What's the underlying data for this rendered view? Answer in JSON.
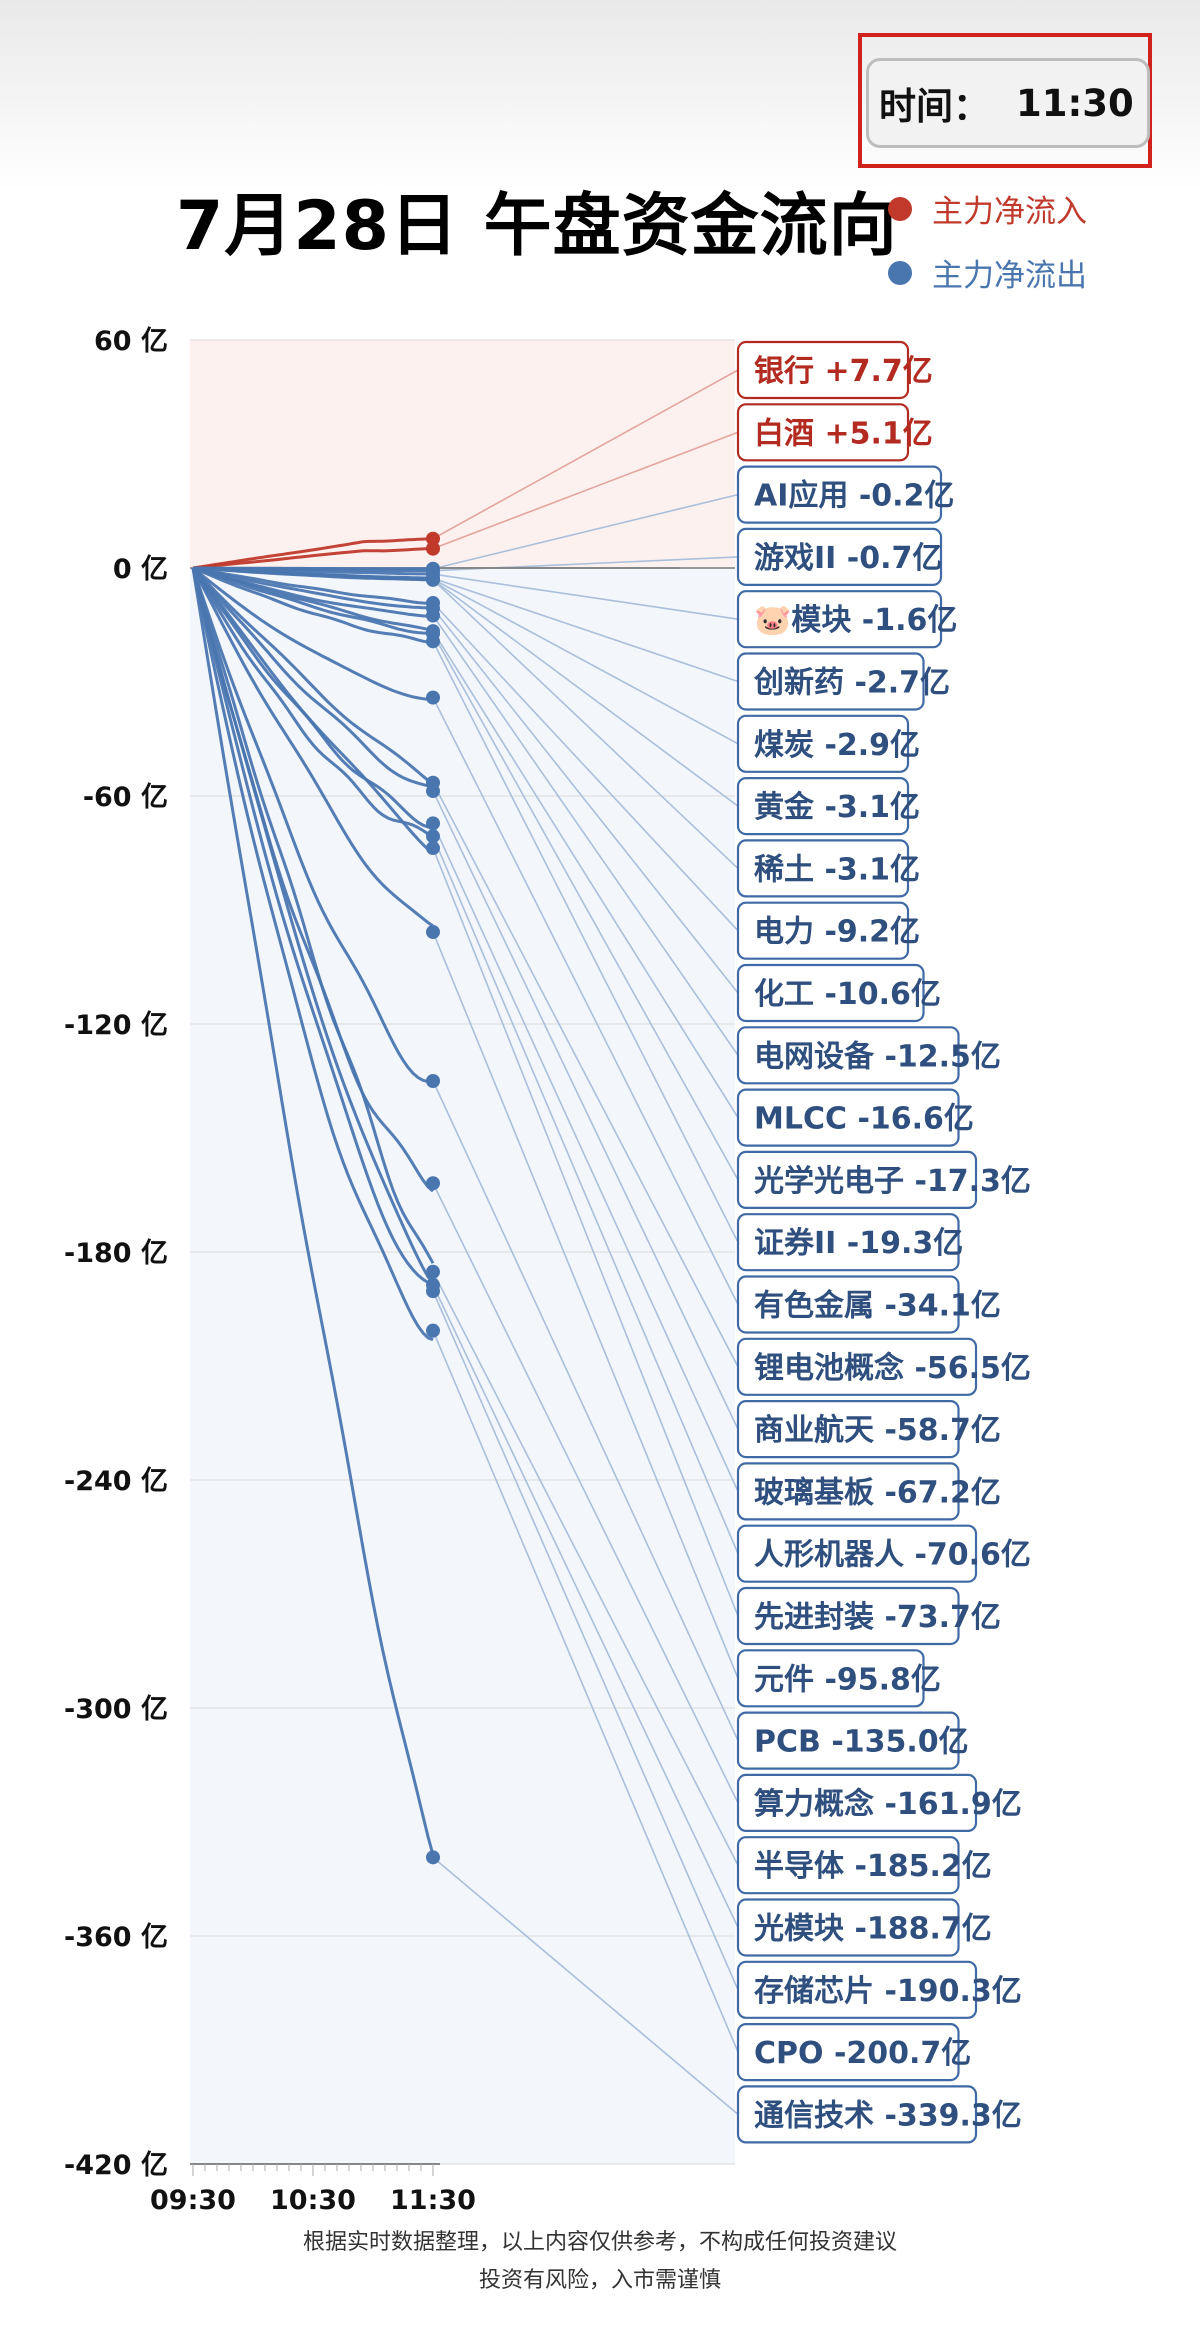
{
  "time_label": "时间：",
  "time_value": "11:30",
  "legend": {
    "inflow_label": "主力净流入",
    "outflow_label": "主力净流出",
    "inflow_color": "#c0392b",
    "outflow_color": "#4a76b0"
  },
  "chart_data": {
    "type": "line",
    "title": "7月28日 午盘资金流向",
    "xlabel": "",
    "ylabel": "",
    "x_ticks": [
      "09:30",
      "10:30",
      "11:30"
    ],
    "y_ticks": [
      "60 亿",
      "0 亿",
      "-60 亿",
      "-120 亿",
      "-180 亿",
      "-240 亿",
      "-300 亿",
      "-360 亿",
      "-420 亿"
    ],
    "ylim": [
      -420,
      60
    ],
    "grid": true,
    "legend_position": "top-right",
    "series": [
      {
        "name": "银行",
        "label": "银行 +7.7亿",
        "value": 7.7
      },
      {
        "name": "白酒",
        "label": "白酒 +5.1亿",
        "value": 5.1
      },
      {
        "name": "AI应用",
        "label": "AI应用 -0.2亿",
        "value": -0.2
      },
      {
        "name": "游戏II",
        "label": "游戏II -0.7亿",
        "value": -0.7
      },
      {
        "name": "🐷模块",
        "label": "🐷模块 -1.6亿",
        "value": -1.6
      },
      {
        "name": "创新药",
        "label": "创新药 -2.7亿",
        "value": -2.7
      },
      {
        "name": "煤炭",
        "label": "煤炭 -2.9亿",
        "value": -2.9
      },
      {
        "name": "黄金",
        "label": "黄金 -3.1亿",
        "value": -3.1
      },
      {
        "name": "稀土",
        "label": "稀土 -3.1亿",
        "value": -3.1
      },
      {
        "name": "电力",
        "label": "电力 -9.2亿",
        "value": -9.2
      },
      {
        "name": "化工",
        "label": "化工 -10.6亿",
        "value": -10.6
      },
      {
        "name": "电网设备",
        "label": "电网设备 -12.5亿",
        "value": -12.5
      },
      {
        "name": "MLCC",
        "label": "MLCC -16.6亿",
        "value": -16.6
      },
      {
        "name": "光学光电子",
        "label": "光学光电子 -17.3亿",
        "value": -17.3
      },
      {
        "name": "证券II",
        "label": "证券II -19.3亿",
        "value": -19.3
      },
      {
        "name": "有色金属",
        "label": "有色金属 -34.1亿",
        "value": -34.1
      },
      {
        "name": "锂电池概念",
        "label": "锂电池概念 -56.5亿",
        "value": -56.5
      },
      {
        "name": "商业航天",
        "label": "商业航天 -58.7亿",
        "value": -58.7
      },
      {
        "name": "玻璃基板",
        "label": "玻璃基板 -67.2亿",
        "value": -67.2
      },
      {
        "name": "人形机器人",
        "label": "人形机器人 -70.6亿",
        "value": -70.6
      },
      {
        "name": "先进封装",
        "label": "先进封装 -73.7亿",
        "value": -73.7
      },
      {
        "name": "元件",
        "label": "元件 -95.8亿",
        "value": -95.8
      },
      {
        "name": "PCB",
        "label": "PCB -135.0亿",
        "value": -135.0
      },
      {
        "name": "算力概念",
        "label": "算力概念 -161.9亿",
        "value": -161.9
      },
      {
        "name": "半导体",
        "label": "半导体 -185.2亿",
        "value": -185.2
      },
      {
        "name": "光模块",
        "label": "光模块 -188.7亿",
        "value": -188.7
      },
      {
        "name": "存储芯片",
        "label": "存储芯片 -190.3亿",
        "value": -190.3
      },
      {
        "name": "CPO",
        "label": "CPO -200.7亿",
        "value": -200.7
      },
      {
        "name": "通信技术",
        "label": "通信技术 -339.3亿",
        "value": -339.3
      }
    ]
  },
  "footer": {
    "line1": "根据实时数据整理，以上内容仅供参考，不构成任何投资建议",
    "line2": "投资有风险，入市需谨慎"
  }
}
